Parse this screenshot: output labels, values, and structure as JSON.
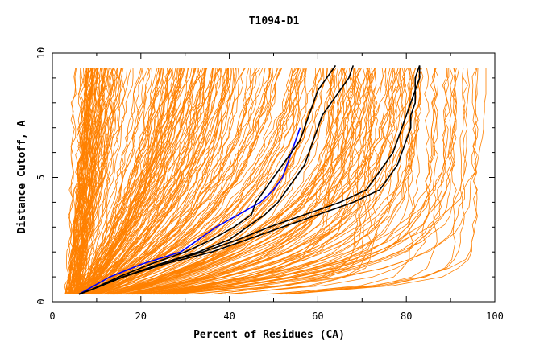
{
  "chart_data": {
    "type": "line",
    "title": "T1094-D1",
    "xlabel": "Percent of Residues (CA)",
    "ylabel": "Distance Cutoff, A",
    "xlim": [
      0,
      100
    ],
    "ylim": [
      0,
      10
    ],
    "x_ticks": [
      "0",
      "20",
      "40",
      "60",
      "80",
      "100"
    ],
    "y_ticks": [
      "0",
      "5",
      "10"
    ],
    "grid": false,
    "legend": "none",
    "colors": {
      "model_curves": "#ff8000",
      "highlight_black": "#000000",
      "highlight_blue": "#0000ff"
    },
    "y_levels": [
      0.3,
      0.5,
      1.0,
      1.5,
      2.0,
      2.5,
      3.0,
      3.5,
      4.0,
      4.5,
      5.0,
      5.5,
      6.0,
      6.5,
      7.0,
      7.5,
      8.0,
      8.5,
      9.0,
      9.5
    ],
    "series": [
      {
        "color": "blue",
        "x": [
          6,
          8,
          13,
          20,
          29,
          33,
          37,
          42,
          47,
          50,
          52,
          53,
          54,
          55,
          56
        ]
      },
      {
        "color": "black",
        "x": [
          6,
          9,
          15,
          22,
          30,
          36,
          41,
          45,
          46,
          48,
          50,
          52,
          54,
          56,
          57,
          58,
          59,
          60,
          62,
          64
        ]
      },
      {
        "color": "black",
        "x": [
          6,
          9,
          16,
          24,
          33,
          40,
          44,
          48,
          51,
          53,
          55,
          57,
          58,
          59,
          60,
          61,
          63,
          65,
          67,
          68
        ]
      },
      {
        "color": "black",
        "x": [
          6,
          9,
          16,
          25,
          36,
          44,
          52,
          60,
          68,
          74,
          76,
          78,
          79,
          80,
          81,
          81,
          82,
          82,
          83,
          83
        ]
      },
      {
        "color": "black",
        "x": [
          6,
          9,
          16,
          24,
          34,
          42,
          49,
          57,
          65,
          71,
          73,
          75,
          77,
          78,
          79,
          80,
          81,
          82,
          82,
          83
        ]
      }
    ]
  }
}
